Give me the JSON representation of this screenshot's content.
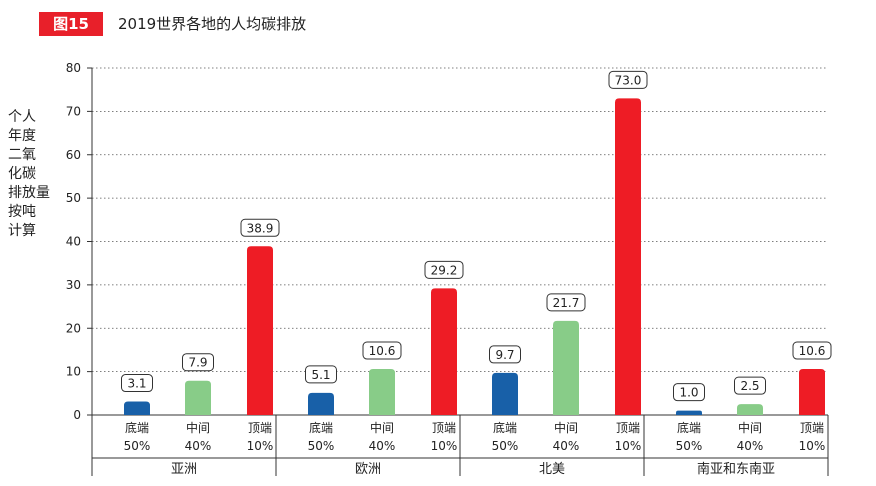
{
  "figure": {
    "badge": "图15",
    "title": "2019世界各地的人均碳排放"
  },
  "colors": {
    "badge": "#e8202a",
    "bottom50": "#1860a8",
    "middle40": "#88cc88",
    "top10": "#ee1c25"
  },
  "chart_data": {
    "type": "bar",
    "title": "2019世界各地的人均碳排放",
    "ylabel_lines": [
      "个人",
      "年度",
      "二氧",
      "化碳",
      "排放量",
      "按吨",
      "计算"
    ],
    "ylim": [
      0,
      80
    ],
    "yticks": [
      0,
      10,
      20,
      30,
      40,
      50,
      60,
      70,
      80
    ],
    "grid": true,
    "groups": [
      {
        "name": "亚洲",
        "bars": [
          {
            "label": "底端",
            "pct": "50%",
            "value": 3.1,
            "value_label": "3.1",
            "tier": "bottom50"
          },
          {
            "label": "中间",
            "pct": "40%",
            "value": 7.9,
            "value_label": "7.9",
            "tier": "middle40"
          },
          {
            "label": "顶端",
            "pct": "10%",
            "value": 38.9,
            "value_label": "38.9",
            "tier": "top10"
          }
        ]
      },
      {
        "name": "欧洲",
        "bars": [
          {
            "label": "底端",
            "pct": "50%",
            "value": 5.1,
            "value_label": "5.1",
            "tier": "bottom50"
          },
          {
            "label": "中间",
            "pct": "40%",
            "value": 10.6,
            "value_label": "10.6",
            "tier": "middle40"
          },
          {
            "label": "顶端",
            "pct": "10%",
            "value": 29.2,
            "value_label": "29.2",
            "tier": "top10"
          }
        ]
      },
      {
        "name": "北美",
        "bars": [
          {
            "label": "底端",
            "pct": "50%",
            "value": 9.7,
            "value_label": "9.7",
            "tier": "bottom50"
          },
          {
            "label": "中间",
            "pct": "40%",
            "value": 21.7,
            "value_label": "21.7",
            "tier": "middle40"
          },
          {
            "label": "顶端",
            "pct": "10%",
            "value": 73.0,
            "value_label": "73.0",
            "tier": "top10"
          }
        ]
      },
      {
        "name": "南亚和东南亚",
        "bars": [
          {
            "label": "底端",
            "pct": "50%",
            "value": 1.0,
            "value_label": "1.0",
            "tier": "bottom50"
          },
          {
            "label": "中间",
            "pct": "40%",
            "value": 2.5,
            "value_label": "2.5",
            "tier": "middle40"
          },
          {
            "label": "顶端",
            "pct": "10%",
            "value": 10.6,
            "value_label": "10.6",
            "tier": "top10"
          }
        ]
      }
    ]
  }
}
